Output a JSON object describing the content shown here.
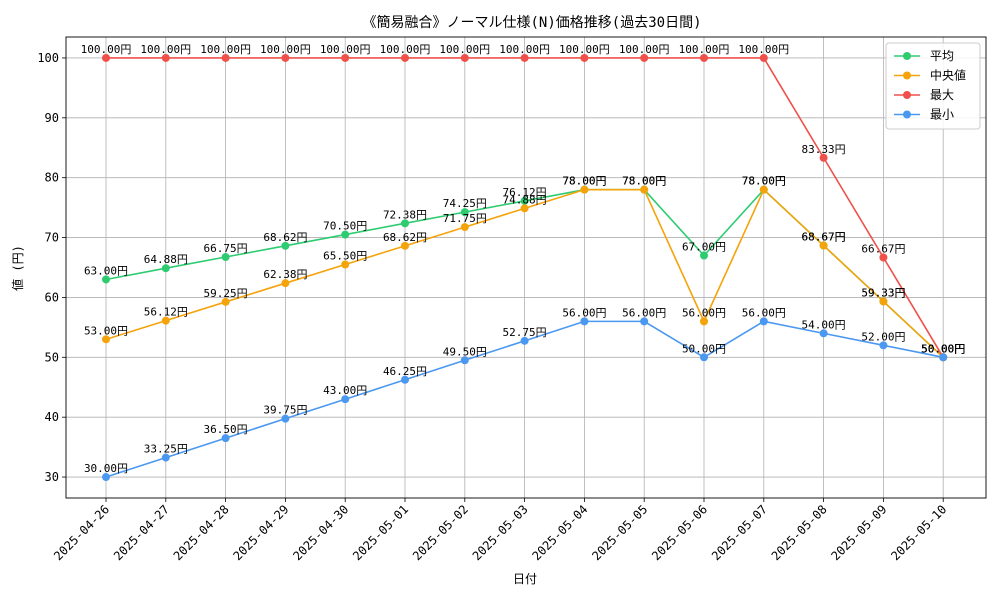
{
  "chart_data": {
    "type": "line",
    "title": "《簡易融合》ノーマル仕様(N)価格推移(過去30日間)",
    "xlabel": "日付",
    "ylabel": "値 (円)",
    "ylim": [
      26.5,
      103.5
    ],
    "yticks": [
      30,
      40,
      50,
      60,
      70,
      80,
      90,
      100
    ],
    "grid": true,
    "legend_position": "top-right",
    "label_suffix": "円",
    "categories": [
      "2025-04-26",
      "2025-04-27",
      "2025-04-28",
      "2025-04-29",
      "2025-04-30",
      "2025-05-01",
      "2025-05-02",
      "2025-05-03",
      "2025-05-04",
      "2025-05-05",
      "2025-05-06",
      "2025-05-07",
      "2025-05-08",
      "2025-05-09",
      "2025-05-10"
    ],
    "series": [
      {
        "name": "平均",
        "color": "#2ecc71",
        "values": [
          63.0,
          64.88,
          66.75,
          68.62,
          70.5,
          72.38,
          74.25,
          76.12,
          78.0,
          78.0,
          67.0,
          78.0,
          68.67,
          59.33,
          50.0
        ]
      },
      {
        "name": "中央値",
        "color": "#f5a30a",
        "values": [
          53.0,
          56.12,
          59.25,
          62.38,
          65.5,
          68.62,
          71.75,
          74.88,
          78.0,
          78.0,
          56.0,
          78.0,
          68.67,
          59.33,
          50.0
        ]
      },
      {
        "name": "最大",
        "color": "#f0504a",
        "values": [
          100.0,
          100.0,
          100.0,
          100.0,
          100.0,
          100.0,
          100.0,
          100.0,
          100.0,
          100.0,
          100.0,
          100.0,
          83.33,
          66.67,
          50.0
        ]
      },
      {
        "name": "最小",
        "color": "#4a98f0",
        "values": [
          30.0,
          33.25,
          36.5,
          39.75,
          43.0,
          46.25,
          49.5,
          52.75,
          56.0,
          56.0,
          50.0,
          56.0,
          54.0,
          52.0,
          50.0
        ]
      }
    ]
  }
}
